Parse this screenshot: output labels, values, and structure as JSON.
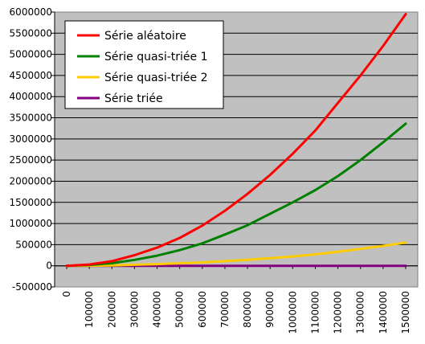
{
  "chart_data": {
    "type": "line",
    "title": "",
    "xlabel": "",
    "ylabel": "",
    "xlim": [
      0,
      1500000
    ],
    "ylim": [
      -500000,
      6000000
    ],
    "x_ticks": [
      0,
      100000,
      200000,
      300000,
      400000,
      500000,
      600000,
      700000,
      800000,
      900000,
      1000000,
      1100000,
      1200000,
      1300000,
      1400000,
      1500000
    ],
    "y_ticks": [
      -500000,
      0,
      500000,
      1000000,
      1500000,
      2000000,
      2500000,
      3000000,
      3500000,
      4000000,
      4500000,
      5000000,
      5500000,
      6000000
    ],
    "grid": "horizontal",
    "plot_background": "#c0c0c0",
    "legend_position": "top-left",
    "x": [
      0,
      100000,
      200000,
      300000,
      400000,
      500000,
      600000,
      700000,
      800000,
      900000,
      1000000,
      1100000,
      1200000,
      1300000,
      1400000,
      1500000
    ],
    "series": [
      {
        "name": "Série aléatoire",
        "color": "#ff0000",
        "values": [
          0,
          30000,
          110000,
          250000,
          430000,
          660000,
          950000,
          1300000,
          1700000,
          2150000,
          2650000,
          3200000,
          3850000,
          4500000,
          5200000,
          5950000
        ]
      },
      {
        "name": "Série quasi-triée 1",
        "color": "#008000",
        "values": [
          0,
          20000,
          60000,
          140000,
          240000,
          370000,
          530000,
          740000,
          960000,
          1230000,
          1500000,
          1790000,
          2120000,
          2500000,
          2920000,
          3360000
        ]
      },
      {
        "name": "Série quasi-triée 2",
        "color": "#ffcc00",
        "values": [
          0,
          2000,
          10000,
          25000,
          40000,
          60000,
          80000,
          110000,
          140000,
          180000,
          220000,
          270000,
          330000,
          400000,
          470000,
          550000
        ]
      },
      {
        "name": "Série triée",
        "color": "#800080",
        "values": [
          0,
          0,
          0,
          0,
          0,
          0,
          0,
          0,
          0,
          0,
          0,
          0,
          0,
          0,
          0,
          0
        ]
      }
    ]
  }
}
